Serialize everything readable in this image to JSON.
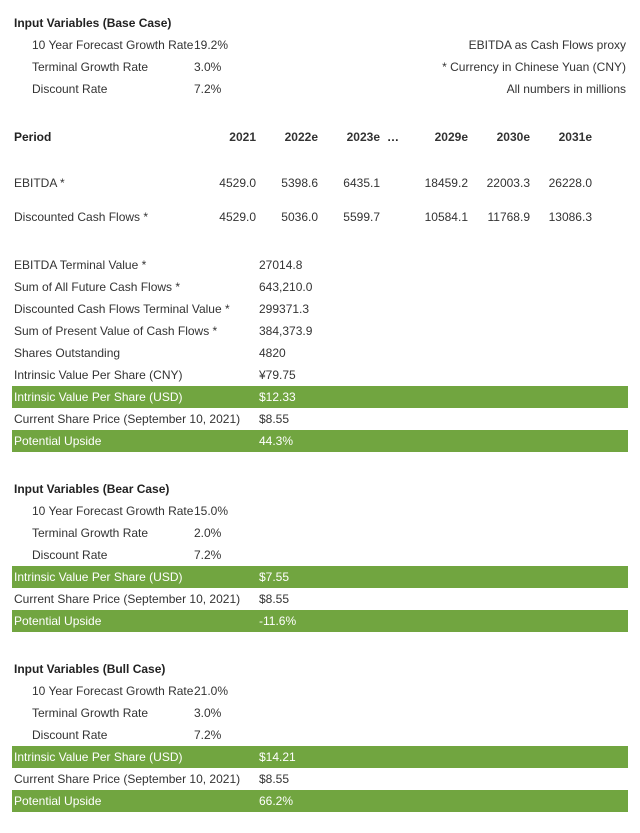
{
  "base": {
    "title": "Input Variables (Base Case)",
    "rows": [
      {
        "label": "10 Year Forecast Growth Rate",
        "value": "19.2%"
      },
      {
        "label": "Terminal Growth Rate",
        "value": "3.0%"
      },
      {
        "label": "Discount Rate",
        "value": "7.2%"
      }
    ],
    "notes": [
      "EBITDA as Cash Flows proxy",
      "* Currency in Chinese Yuan (CNY)",
      "All numbers in millions"
    ]
  },
  "periods": {
    "header": "Period",
    "cols": [
      "2021",
      "2022e",
      "2023e",
      "2029e",
      "2030e",
      "2031e"
    ],
    "ellipsis": "…",
    "rows": [
      {
        "label": "EBITDA *",
        "vals": [
          "4529.0",
          "5398.6",
          "6435.1",
          "18459.2",
          "22003.3",
          "26228.0"
        ]
      },
      {
        "label": "Discounted Cash Flows *",
        "vals": [
          "4529.0",
          "5036.0",
          "5599.7",
          "10584.1",
          "11768.9",
          "13086.3"
        ]
      }
    ]
  },
  "summary": [
    {
      "label": "EBITDA Terminal Value *",
      "value": "27014.8",
      "hl": false
    },
    {
      "label": "Sum of All Future Cash Flows *",
      "value": "643,210.0",
      "hl": false
    },
    {
      "label": "Discounted Cash Flows Terminal Value *",
      "value": "299371.3",
      "hl": false
    },
    {
      "label": "Sum of Present Value of Cash Flows *",
      "value": "384,373.9",
      "hl": false
    },
    {
      "label": "Shares Outstanding",
      "value": "4820",
      "hl": false
    },
    {
      "label": "Intrinsic Value Per Share (CNY)",
      "value": "¥79.75",
      "hl": false
    },
    {
      "label": "Intrinsic Value Per Share (USD)",
      "value": "$12.33",
      "hl": true
    },
    {
      "label": "Current Share Price (September 10, 2021)",
      "value": "$8.55",
      "hl": false
    },
    {
      "label": "Potential Upside",
      "value": "44.3%",
      "hl": true
    }
  ],
  "bear": {
    "title": "Input Variables (Bear Case)",
    "rows": [
      {
        "label": "10 Year Forecast Growth Rate",
        "value": "15.0%"
      },
      {
        "label": "Terminal Growth Rate",
        "value": "2.0%"
      },
      {
        "label": "Discount Rate",
        "value": "7.2%"
      }
    ],
    "summary": [
      {
        "label": "Intrinsic Value Per Share (USD)",
        "value": "$7.55",
        "hl": true
      },
      {
        "label": "Current Share Price (September 10, 2021)",
        "value": "$8.55",
        "hl": false
      },
      {
        "label": "Potential Upside",
        "value": "-11.6%",
        "hl": true
      }
    ]
  },
  "bull": {
    "title": "Input Variables (Bull Case)",
    "rows": [
      {
        "label": "10 Year Forecast Growth Rate",
        "value": "21.0%"
      },
      {
        "label": "Terminal Growth Rate",
        "value": "3.0%"
      },
      {
        "label": "Discount Rate",
        "value": "7.2%"
      }
    ],
    "summary": [
      {
        "label": "Intrinsic Value Per Share (USD)",
        "value": "$14.21",
        "hl": true
      },
      {
        "label": "Current Share Price (September 10, 2021)",
        "value": "$8.55",
        "hl": false
      },
      {
        "label": "Potential Upside",
        "value": "66.2%",
        "hl": true
      }
    ]
  },
  "colors": {
    "highlight": "#71a540",
    "text": "#333333"
  }
}
